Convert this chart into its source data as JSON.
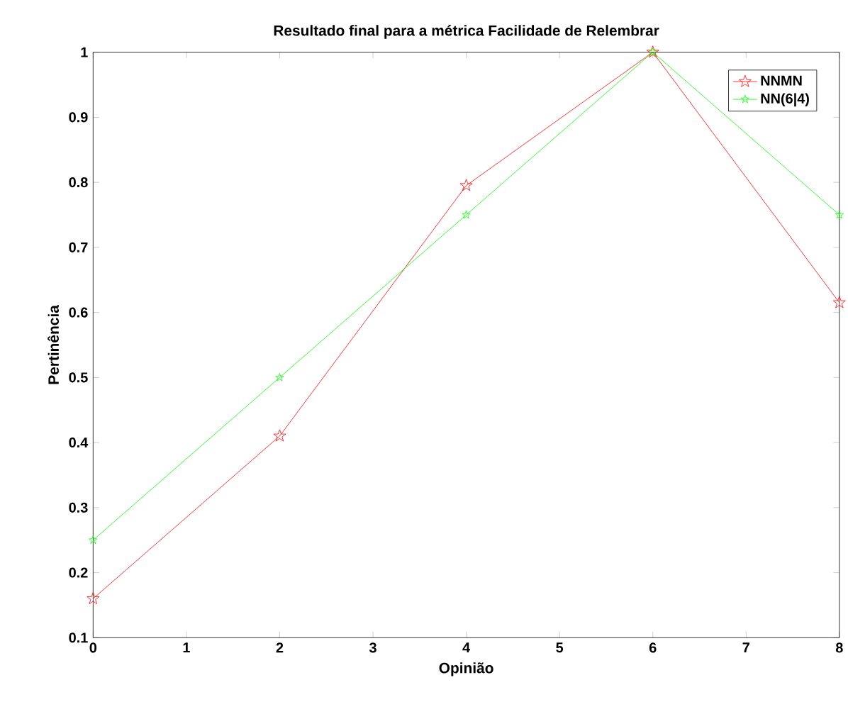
{
  "chart_data": {
    "type": "line",
    "title": "Resultado final para a métrica Facilidade de Relembrar",
    "xlabel": "Opinião",
    "ylabel": "Pertinência",
    "x": [
      0,
      2,
      4,
      6,
      8
    ],
    "series": [
      {
        "name": "NNMN",
        "color": "#ff0000",
        "values": [
          0.16,
          0.41,
          0.795,
          1.0,
          0.615
        ]
      },
      {
        "name": "NN(6|4)",
        "color": "#00ff00",
        "values": [
          0.25,
          0.5,
          0.75,
          1.0,
          0.75
        ]
      }
    ],
    "xlim": [
      0,
      8
    ],
    "ylim": [
      0.1,
      1
    ],
    "xticks": [
      0,
      1,
      2,
      3,
      4,
      5,
      6,
      7,
      8
    ],
    "yticks": [
      0.1,
      0.2,
      0.3,
      0.4,
      0.5,
      0.6,
      0.7,
      0.8,
      0.9,
      1
    ],
    "legend": "top right",
    "marker": "star",
    "line_style": "solid",
    "grid": false
  }
}
